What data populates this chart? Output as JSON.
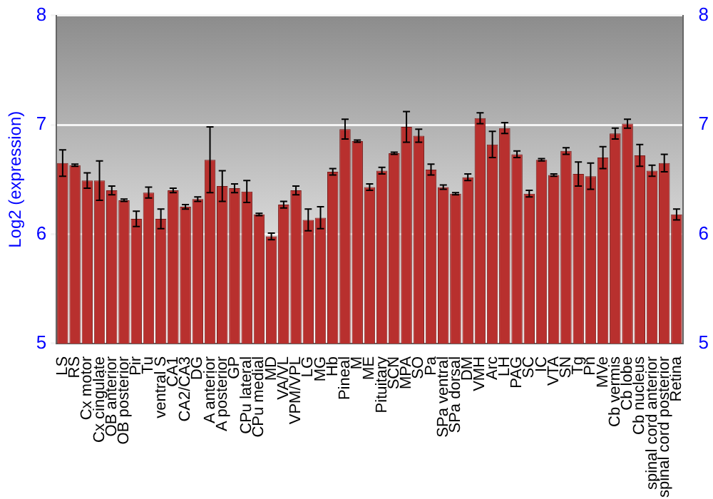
{
  "chart_data": {
    "type": "bar",
    "ylabel": "Log2 (expression)",
    "categories": [
      "LS",
      "RS",
      "Cx motor",
      "Cx cingulate",
      "OB anterior",
      "OB posterior",
      "Pir",
      "Tu",
      "ventral S",
      "CA1",
      "CA2/CA3",
      "DG",
      "A anterior",
      "A posterior",
      "GP",
      "CPu lateral",
      "CPu medial",
      "MD",
      "VA/VL",
      "VPM/VPL",
      "LG",
      "MG",
      "Hb",
      "Pineal",
      "M",
      "ME",
      "Pituitary",
      "SCN",
      "MPA",
      "SO",
      "Pa",
      "SPa ventral",
      "SPa dorsal",
      "DM",
      "VMH",
      "Arc",
      "LH",
      "PAG",
      "SC",
      "IC",
      "VTA",
      "SN",
      "Tg",
      "Pn",
      "MVe",
      "Cb vermis",
      "Cb lobe",
      "Cb nucleus",
      "spinal cord anterior",
      "spinal cord posterior",
      "Retina"
    ],
    "values": [
      6.65,
      6.63,
      6.49,
      6.49,
      6.4,
      6.31,
      6.14,
      6.38,
      6.14,
      6.4,
      6.25,
      6.32,
      6.68,
      6.44,
      6.42,
      6.39,
      6.18,
      5.98,
      6.27,
      6.4,
      6.13,
      6.15,
      6.57,
      6.96,
      6.85,
      6.43,
      6.58,
      6.74,
      6.98,
      6.9,
      6.59,
      6.43,
      6.37,
      6.52,
      7.06,
      6.82,
      6.97,
      6.73,
      6.37,
      6.68,
      6.54,
      6.76,
      6.55,
      6.53,
      6.7,
      6.92,
      7.01,
      6.72,
      6.58,
      6.65,
      6.18
    ],
    "errors": [
      0.12,
      0.01,
      0.07,
      0.18,
      0.04,
      0.01,
      0.07,
      0.05,
      0.09,
      0.02,
      0.02,
      0.02,
      0.3,
      0.14,
      0.04,
      0.1,
      0.01,
      0.03,
      0.03,
      0.04,
      0.1,
      0.1,
      0.03,
      0.09,
      0.01,
      0.03,
      0.03,
      0.01,
      0.14,
      0.06,
      0.05,
      0.02,
      0.01,
      0.03,
      0.05,
      0.12,
      0.05,
      0.03,
      0.03,
      0.01,
      0.01,
      0.03,
      0.11,
      0.12,
      0.1,
      0.05,
      0.04,
      0.1,
      0.05,
      0.08,
      0.05
    ],
    "color": "#b8302e",
    "ylim": [
      5,
      8
    ],
    "yticks": [
      5,
      6,
      7,
      8
    ],
    "y2lim": [
      5,
      8
    ],
    "y2ticks": [
      5,
      6,
      7,
      8
    ],
    "grid": "y",
    "legend": false
  }
}
